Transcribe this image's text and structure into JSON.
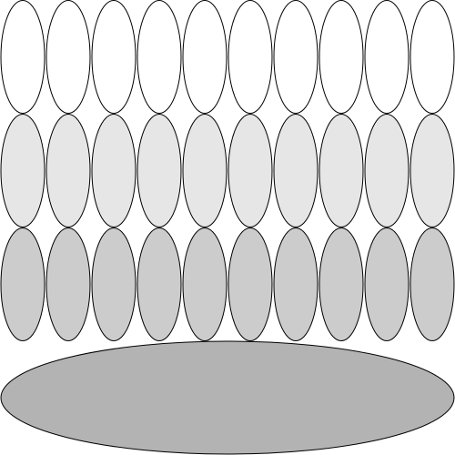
{
  "rows": [
    {
      "fill": "#ffffff",
      "count": 10
    },
    {
      "fill": "#e6e6e6",
      "count": 10
    },
    {
      "fill": "#cccccc",
      "count": 10
    }
  ],
  "base": {
    "fill": "#b3b3b3"
  },
  "stroke": "#000000"
}
